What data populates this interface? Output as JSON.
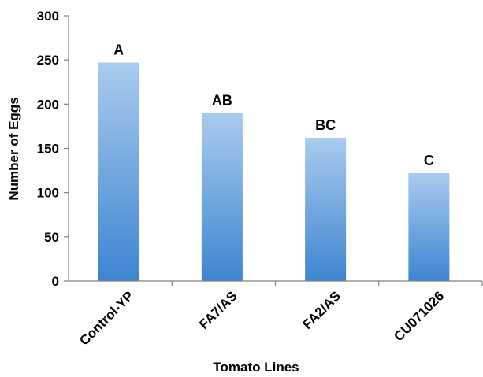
{
  "chart_data": {
    "type": "bar",
    "title": "",
    "xlabel": "Tomato Lines",
    "ylabel": "Number of  Eggs",
    "categories": [
      "Control-YP",
      "FA7/AS",
      "FA2/AS",
      "CU071026"
    ],
    "values": [
      247,
      190,
      162,
      122
    ],
    "data_labels": [
      "A",
      "AB",
      "BC",
      "C"
    ],
    "ylim": [
      0,
      300
    ],
    "yticks": [
      0,
      50,
      100,
      150,
      200,
      250,
      300
    ],
    "grid": false,
    "legend": "none",
    "colors": {
      "bar_top": "#a9cbee",
      "bar_bottom": "#3d85d1",
      "axis": "#808080"
    }
  }
}
